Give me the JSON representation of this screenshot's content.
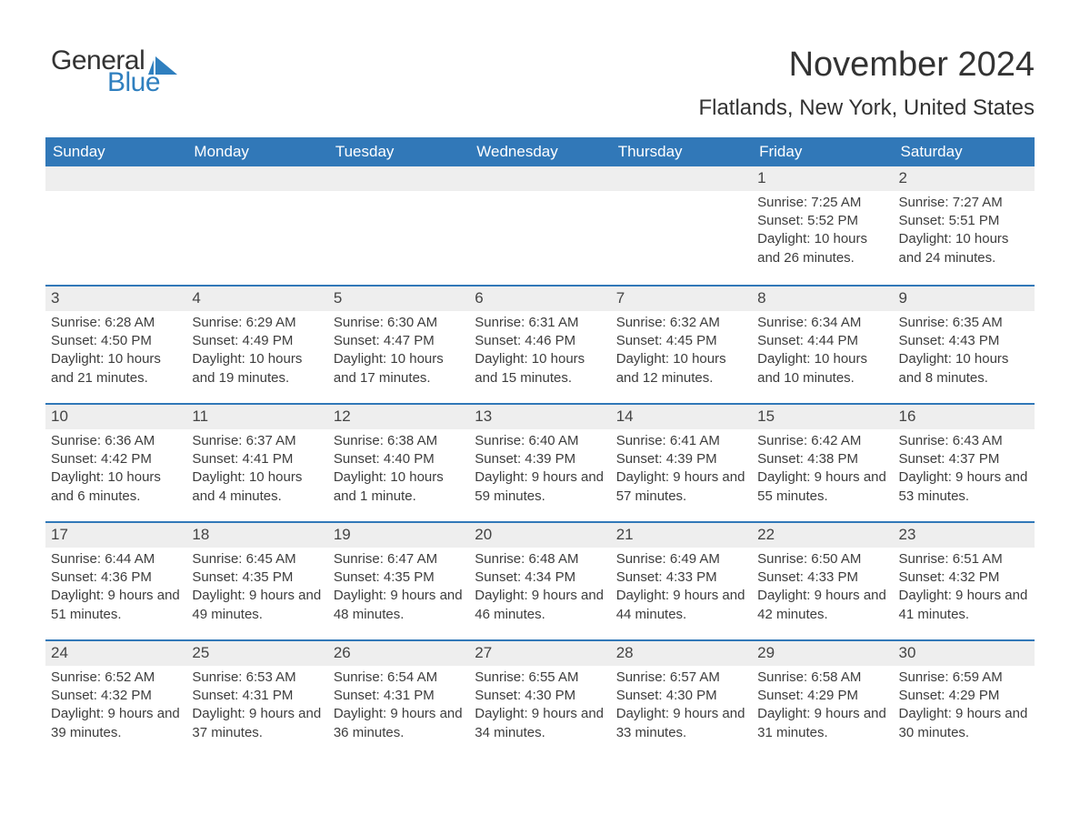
{
  "logo": {
    "word1": "General",
    "word2": "Blue"
  },
  "title": {
    "month": "November 2024",
    "location": "Flatlands, New York, United States"
  },
  "colors": {
    "header_bg": "#3178b8",
    "header_text": "#ffffff",
    "daynum_bg": "#eeeeee",
    "border": "#3178b8",
    "text": "#3d3d3d",
    "logo_blue": "#2f7fbf",
    "logo_dark": "#333333"
  },
  "weekdays": [
    "Sunday",
    "Monday",
    "Tuesday",
    "Wednesday",
    "Thursday",
    "Friday",
    "Saturday"
  ],
  "labels": {
    "sunrise": "Sunrise:",
    "sunset": "Sunset:",
    "daylight": "Daylight:"
  },
  "weeks": [
    [
      {
        "empty": true
      },
      {
        "empty": true
      },
      {
        "empty": true
      },
      {
        "empty": true
      },
      {
        "empty": true
      },
      {
        "day": "1",
        "sunrise": "7:25 AM",
        "sunset": "5:52 PM",
        "daylight": "10 hours and 26 minutes."
      },
      {
        "day": "2",
        "sunrise": "7:27 AM",
        "sunset": "5:51 PM",
        "daylight": "10 hours and 24 minutes."
      }
    ],
    [
      {
        "day": "3",
        "sunrise": "6:28 AM",
        "sunset": "4:50 PM",
        "daylight": "10 hours and 21 minutes."
      },
      {
        "day": "4",
        "sunrise": "6:29 AM",
        "sunset": "4:49 PM",
        "daylight": "10 hours and 19 minutes."
      },
      {
        "day": "5",
        "sunrise": "6:30 AM",
        "sunset": "4:47 PM",
        "daylight": "10 hours and 17 minutes."
      },
      {
        "day": "6",
        "sunrise": "6:31 AM",
        "sunset": "4:46 PM",
        "daylight": "10 hours and 15 minutes."
      },
      {
        "day": "7",
        "sunrise": "6:32 AM",
        "sunset": "4:45 PM",
        "daylight": "10 hours and 12 minutes."
      },
      {
        "day": "8",
        "sunrise": "6:34 AM",
        "sunset": "4:44 PM",
        "daylight": "10 hours and 10 minutes."
      },
      {
        "day": "9",
        "sunrise": "6:35 AM",
        "sunset": "4:43 PM",
        "daylight": "10 hours and 8 minutes."
      }
    ],
    [
      {
        "day": "10",
        "sunrise": "6:36 AM",
        "sunset": "4:42 PM",
        "daylight": "10 hours and 6 minutes."
      },
      {
        "day": "11",
        "sunrise": "6:37 AM",
        "sunset": "4:41 PM",
        "daylight": "10 hours and 4 minutes."
      },
      {
        "day": "12",
        "sunrise": "6:38 AM",
        "sunset": "4:40 PM",
        "daylight": "10 hours and 1 minute."
      },
      {
        "day": "13",
        "sunrise": "6:40 AM",
        "sunset": "4:39 PM",
        "daylight": "9 hours and 59 minutes."
      },
      {
        "day": "14",
        "sunrise": "6:41 AM",
        "sunset": "4:39 PM",
        "daylight": "9 hours and 57 minutes."
      },
      {
        "day": "15",
        "sunrise": "6:42 AM",
        "sunset": "4:38 PM",
        "daylight": "9 hours and 55 minutes."
      },
      {
        "day": "16",
        "sunrise": "6:43 AM",
        "sunset": "4:37 PM",
        "daylight": "9 hours and 53 minutes."
      }
    ],
    [
      {
        "day": "17",
        "sunrise": "6:44 AM",
        "sunset": "4:36 PM",
        "daylight": "9 hours and 51 minutes."
      },
      {
        "day": "18",
        "sunrise": "6:45 AM",
        "sunset": "4:35 PM",
        "daylight": "9 hours and 49 minutes."
      },
      {
        "day": "19",
        "sunrise": "6:47 AM",
        "sunset": "4:35 PM",
        "daylight": "9 hours and 48 minutes."
      },
      {
        "day": "20",
        "sunrise": "6:48 AM",
        "sunset": "4:34 PM",
        "daylight": "9 hours and 46 minutes."
      },
      {
        "day": "21",
        "sunrise": "6:49 AM",
        "sunset": "4:33 PM",
        "daylight": "9 hours and 44 minutes."
      },
      {
        "day": "22",
        "sunrise": "6:50 AM",
        "sunset": "4:33 PM",
        "daylight": "9 hours and 42 minutes."
      },
      {
        "day": "23",
        "sunrise": "6:51 AM",
        "sunset": "4:32 PM",
        "daylight": "9 hours and 41 minutes."
      }
    ],
    [
      {
        "day": "24",
        "sunrise": "6:52 AM",
        "sunset": "4:32 PM",
        "daylight": "9 hours and 39 minutes."
      },
      {
        "day": "25",
        "sunrise": "6:53 AM",
        "sunset": "4:31 PM",
        "daylight": "9 hours and 37 minutes."
      },
      {
        "day": "26",
        "sunrise": "6:54 AM",
        "sunset": "4:31 PM",
        "daylight": "9 hours and 36 minutes."
      },
      {
        "day": "27",
        "sunrise": "6:55 AM",
        "sunset": "4:30 PM",
        "daylight": "9 hours and 34 minutes."
      },
      {
        "day": "28",
        "sunrise": "6:57 AM",
        "sunset": "4:30 PM",
        "daylight": "9 hours and 33 minutes."
      },
      {
        "day": "29",
        "sunrise": "6:58 AM",
        "sunset": "4:29 PM",
        "daylight": "9 hours and 31 minutes."
      },
      {
        "day": "30",
        "sunrise": "6:59 AM",
        "sunset": "4:29 PM",
        "daylight": "9 hours and 30 minutes."
      }
    ]
  ]
}
